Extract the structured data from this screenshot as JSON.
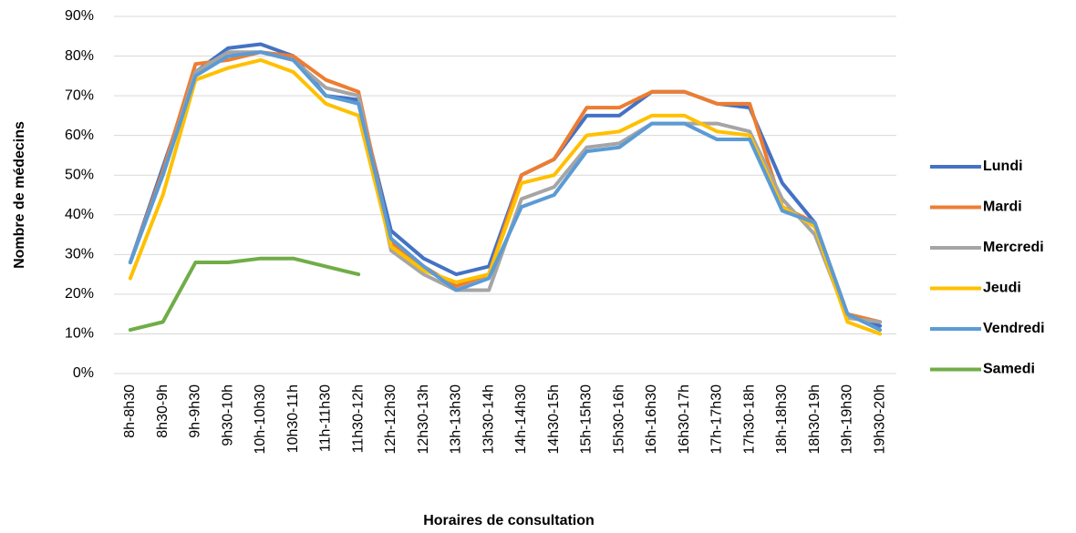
{
  "chart_data": {
    "type": "line",
    "x_label": "Horaires de consultation",
    "y_label": "Nombre de médecins",
    "categories": [
      "8h-8h30",
      "8h30-9h",
      "9h-9h30",
      "9h30-10h",
      "10h-10h30",
      "10h30-11h",
      "11h-11h30",
      "11h30-12h",
      "12h-12h30",
      "12h30-13h",
      "13h-13h30",
      "13h30-14h",
      "14h-14h30",
      "14h30-15h",
      "15h-15h30",
      "15h30-16h",
      "16h-16h30",
      "16h30-17h",
      "17h-17h30",
      "17h30-18h",
      "18h-18h30",
      "18h30-19h",
      "19h-19h30",
      "19h30-20h"
    ],
    "series": [
      {
        "name": "Lundi",
        "color": "#4472c4",
        "values": [
          28,
          52,
          76,
          82,
          83,
          80,
          70,
          69,
          36,
          29,
          25,
          27,
          50,
          54,
          65,
          65,
          71,
          71,
          68,
          67,
          48,
          38,
          15,
          12
        ]
      },
      {
        "name": "Mardi",
        "color": "#ed7d31",
        "values": [
          28,
          51,
          78,
          79,
          81,
          80,
          74,
          71,
          33,
          27,
          22,
          25,
          50,
          54,
          67,
          67,
          71,
          71,
          68,
          68,
          42,
          38,
          15,
          13
        ]
      },
      {
        "name": "Mercredi",
        "color": "#a5a5a5",
        "values": [
          28,
          50,
          76,
          81,
          81,
          79,
          72,
          70,
          31,
          25,
          21,
          21,
          44,
          47,
          57,
          58,
          63,
          63,
          63,
          61,
          44,
          35,
          14,
          13
        ]
      },
      {
        "name": "Jeudi",
        "color": "#ffc000",
        "values": [
          24,
          45,
          74,
          77,
          79,
          76,
          68,
          65,
          32,
          26,
          23,
          25,
          48,
          50,
          60,
          61,
          65,
          65,
          61,
          60,
          42,
          37,
          13,
          10
        ]
      },
      {
        "name": "Vendredi",
        "color": "#5b9bd5",
        "values": [
          28,
          50,
          75,
          80,
          81,
          79,
          70,
          68,
          34,
          27,
          21,
          24,
          42,
          45,
          56,
          57,
          63,
          63,
          59,
          59,
          41,
          38,
          15,
          11
        ]
      },
      {
        "name": "Samedi",
        "color": "#70ad47",
        "values": [
          11,
          13,
          28,
          28,
          29,
          29,
          27,
          25,
          null,
          null,
          null,
          null,
          null,
          null,
          null,
          null,
          null,
          null,
          null,
          null,
          null,
          null,
          null,
          null
        ]
      }
    ],
    "ylim": [
      0,
      90
    ],
    "yticks": [
      {
        "value": 0,
        "label": "0%"
      },
      {
        "value": 10,
        "label": "10%"
      },
      {
        "value": 20,
        "label": "20%"
      },
      {
        "value": 30,
        "label": "30%"
      },
      {
        "value": 40,
        "label": "40%"
      },
      {
        "value": 50,
        "label": "50%"
      },
      {
        "value": 60,
        "label": "60%"
      },
      {
        "value": 70,
        "label": "70%"
      },
      {
        "value": 80,
        "label": "80%"
      },
      {
        "value": 90,
        "label": "90%"
      }
    ],
    "grid": true,
    "legend": "right"
  }
}
